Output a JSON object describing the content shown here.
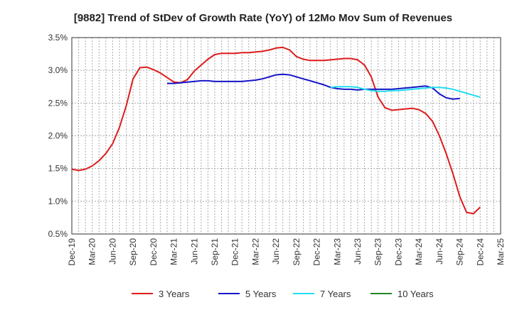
{
  "chart_data": {
    "type": "line",
    "title": "[9882]  Trend of StDev of Growth Rate (YoY) of 12Mo Mov Sum of Revenues",
    "xlabel": "",
    "ylabel": "",
    "ylim": [
      0.5,
      3.5
    ],
    "y_ticks": [
      {
        "v": 0.5,
        "label": "0.5%"
      },
      {
        "v": 1.0,
        "label": "1.0%"
      },
      {
        "v": 1.5,
        "label": "1.5%"
      },
      {
        "v": 2.0,
        "label": "2.0%"
      },
      {
        "v": 2.5,
        "label": "2.5%"
      },
      {
        "v": 3.0,
        "label": "3.0%"
      },
      {
        "v": 3.5,
        "label": "3.5%"
      }
    ],
    "x_ticks": [
      {
        "i": 0,
        "label": "Dec-19"
      },
      {
        "i": 3,
        "label": "Mar-20"
      },
      {
        "i": 6,
        "label": "Jun-20"
      },
      {
        "i": 9,
        "label": "Sep-20"
      },
      {
        "i": 12,
        "label": "Dec-20"
      },
      {
        "i": 15,
        "label": "Mar-21"
      },
      {
        "i": 18,
        "label": "Jun-21"
      },
      {
        "i": 21,
        "label": "Sep-21"
      },
      {
        "i": 24,
        "label": "Dec-21"
      },
      {
        "i": 27,
        "label": "Mar-22"
      },
      {
        "i": 30,
        "label": "Jun-22"
      },
      {
        "i": 33,
        "label": "Sep-22"
      },
      {
        "i": 36,
        "label": "Dec-22"
      },
      {
        "i": 39,
        "label": "Mar-23"
      },
      {
        "i": 42,
        "label": "Jun-23"
      },
      {
        "i": 45,
        "label": "Sep-23"
      },
      {
        "i": 48,
        "label": "Dec-23"
      },
      {
        "i": 51,
        "label": "Mar-24"
      },
      {
        "i": 54,
        "label": "Jun-24"
      },
      {
        "i": 57,
        "label": "Sep-24"
      },
      {
        "i": 60,
        "label": "Dec-24"
      },
      {
        "i": 63,
        "label": "Mar-25"
      }
    ],
    "x_count": 64,
    "grid": true,
    "legend_position": "bottom",
    "series": [
      {
        "name": "3 Years",
        "color": "#dd1c1c",
        "start": 0,
        "values": [
          1.49,
          1.47,
          1.49,
          1.54,
          1.62,
          1.73,
          1.88,
          2.13,
          2.46,
          2.87,
          3.04,
          3.05,
          3.01,
          2.96,
          2.89,
          2.82,
          2.81,
          2.86,
          2.99,
          3.08,
          3.17,
          3.24,
          3.26,
          3.26,
          3.26,
          3.27,
          3.27,
          3.28,
          3.29,
          3.31,
          3.34,
          3.35,
          3.31,
          3.21,
          3.17,
          3.15,
          3.15,
          3.15,
          3.16,
          3.17,
          3.18,
          3.18,
          3.16,
          3.08,
          2.9,
          2.59,
          2.43,
          2.39,
          2.4,
          2.41,
          2.42,
          2.4,
          2.34,
          2.22,
          2.0,
          1.73,
          1.42,
          1.07,
          0.83,
          0.81,
          0.91
        ]
      },
      {
        "name": "5 Years",
        "color": "#1515c8",
        "start": 14,
        "values": [
          2.8,
          2.8,
          2.81,
          2.82,
          2.83,
          2.84,
          2.84,
          2.83,
          2.83,
          2.83,
          2.83,
          2.83,
          2.84,
          2.85,
          2.87,
          2.9,
          2.93,
          2.94,
          2.93,
          2.9,
          2.87,
          2.84,
          2.81,
          2.78,
          2.74,
          2.72,
          2.71,
          2.71,
          2.7,
          2.71,
          2.71,
          2.71,
          2.71,
          2.71,
          2.72,
          2.73,
          2.74,
          2.75,
          2.76,
          2.73,
          2.64,
          2.58,
          2.56,
          2.57
        ]
      },
      {
        "name": "7 Years",
        "color": "#22ddee",
        "start": 38,
        "values": [
          2.74,
          2.75,
          2.75,
          2.75,
          2.74,
          2.71,
          2.69,
          2.68,
          2.68,
          2.69,
          2.69,
          2.7,
          2.71,
          2.72,
          2.73,
          2.74,
          2.74,
          2.73,
          2.71,
          2.68,
          2.65,
          2.62,
          2.59
        ]
      },
      {
        "name": "10 Years",
        "color": "#228822",
        "start": 64,
        "values": []
      }
    ]
  }
}
